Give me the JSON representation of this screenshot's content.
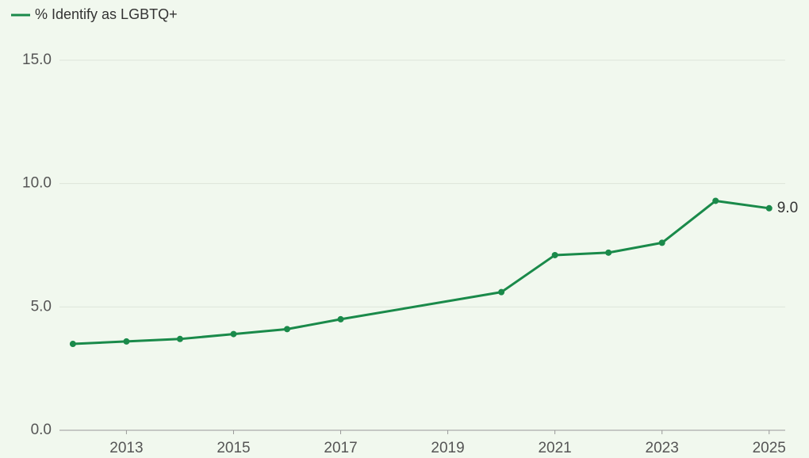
{
  "chart_data": {
    "type": "line",
    "x": [
      2012,
      2013,
      2014,
      2015,
      2016,
      2017,
      2020,
      2021,
      2022,
      2023,
      2024,
      2025
    ],
    "series": [
      {
        "name": "% Identify as LGBTQ+",
        "color": "#1a8a4a",
        "values": [
          3.5,
          3.6,
          3.7,
          3.9,
          4.1,
          4.5,
          5.6,
          7.1,
          7.2,
          7.6,
          9.3,
          9.0
        ],
        "value_labels": [
          null,
          null,
          null,
          null,
          null,
          null,
          null,
          null,
          null,
          null,
          null,
          "9.0"
        ]
      }
    ],
    "xlim": [
      2011.75,
      2025.3
    ],
    "xticks": [
      2013,
      2015,
      2017,
      2019,
      2021,
      2023,
      2025
    ],
    "ylim": [
      0,
      15
    ],
    "yticks": [
      {
        "value": 0,
        "label": "0.0"
      },
      {
        "value": 5,
        "label": "5.0"
      },
      {
        "value": 10,
        "label": "10.0"
      },
      {
        "value": 15,
        "label": "15.0"
      }
    ],
    "grid": true,
    "legend": "top-left"
  }
}
